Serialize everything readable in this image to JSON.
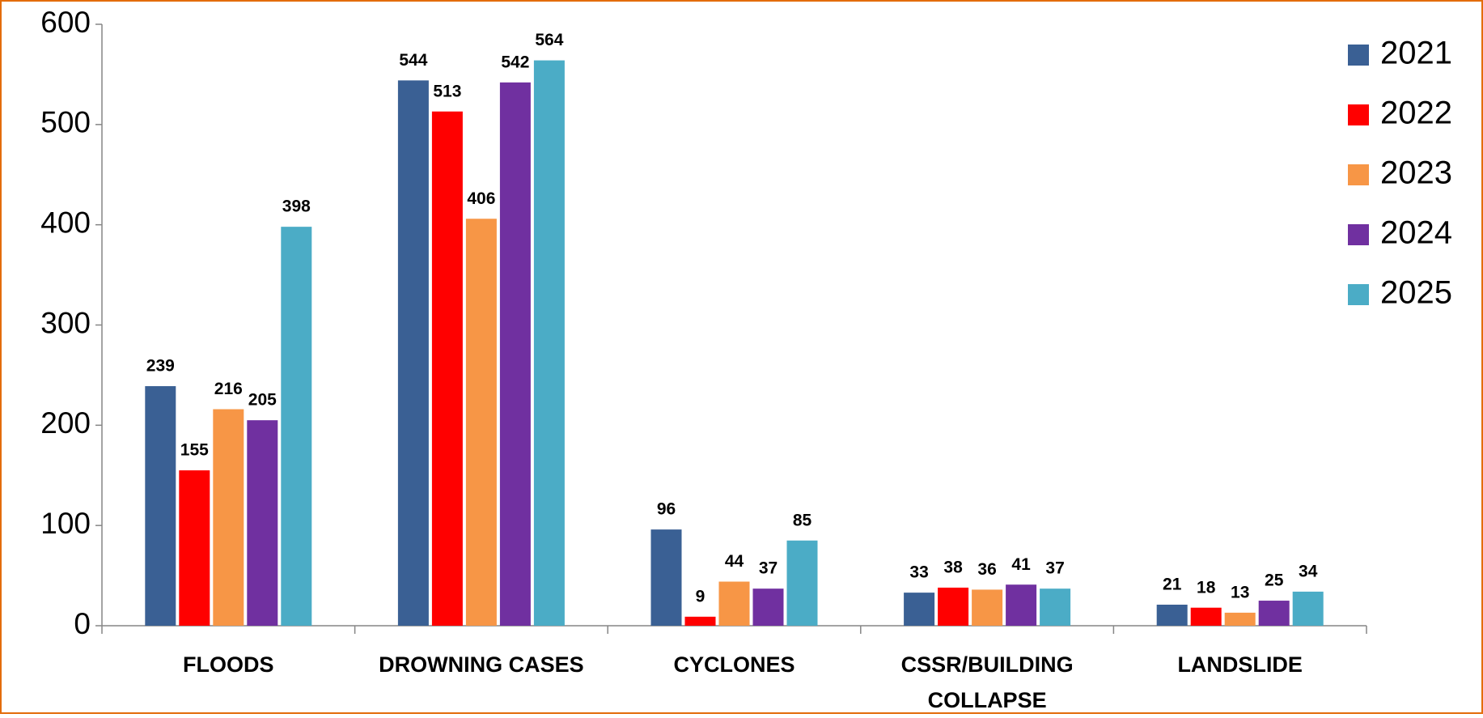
{
  "chart_data": {
    "type": "bar",
    "categories": [
      "FLOODS",
      "DROWNING CASES",
      "CYCLONES",
      "CSSR/BUILDING COLLAPSE",
      "LANDSLIDE"
    ],
    "series": [
      {
        "name": "2021",
        "color": "#3a6094",
        "values": [
          239,
          544,
          96,
          33,
          21
        ]
      },
      {
        "name": "2022",
        "color": "#ff0000",
        "values": [
          155,
          513,
          9,
          38,
          18
        ]
      },
      {
        "name": "2023",
        "color": "#f79646",
        "values": [
          216,
          406,
          44,
          36,
          13
        ]
      },
      {
        "name": "2024",
        "color": "#7030a0",
        "values": [
          205,
          542,
          37,
          41,
          25
        ]
      },
      {
        "name": "2025",
        "color": "#4bacc6",
        "values": [
          398,
          564,
          85,
          37,
          34
        ]
      }
    ],
    "ylim": [
      0,
      600
    ],
    "yticks": [
      0,
      100,
      200,
      300,
      400,
      500,
      600
    ],
    "grid": false,
    "legend": "right"
  }
}
